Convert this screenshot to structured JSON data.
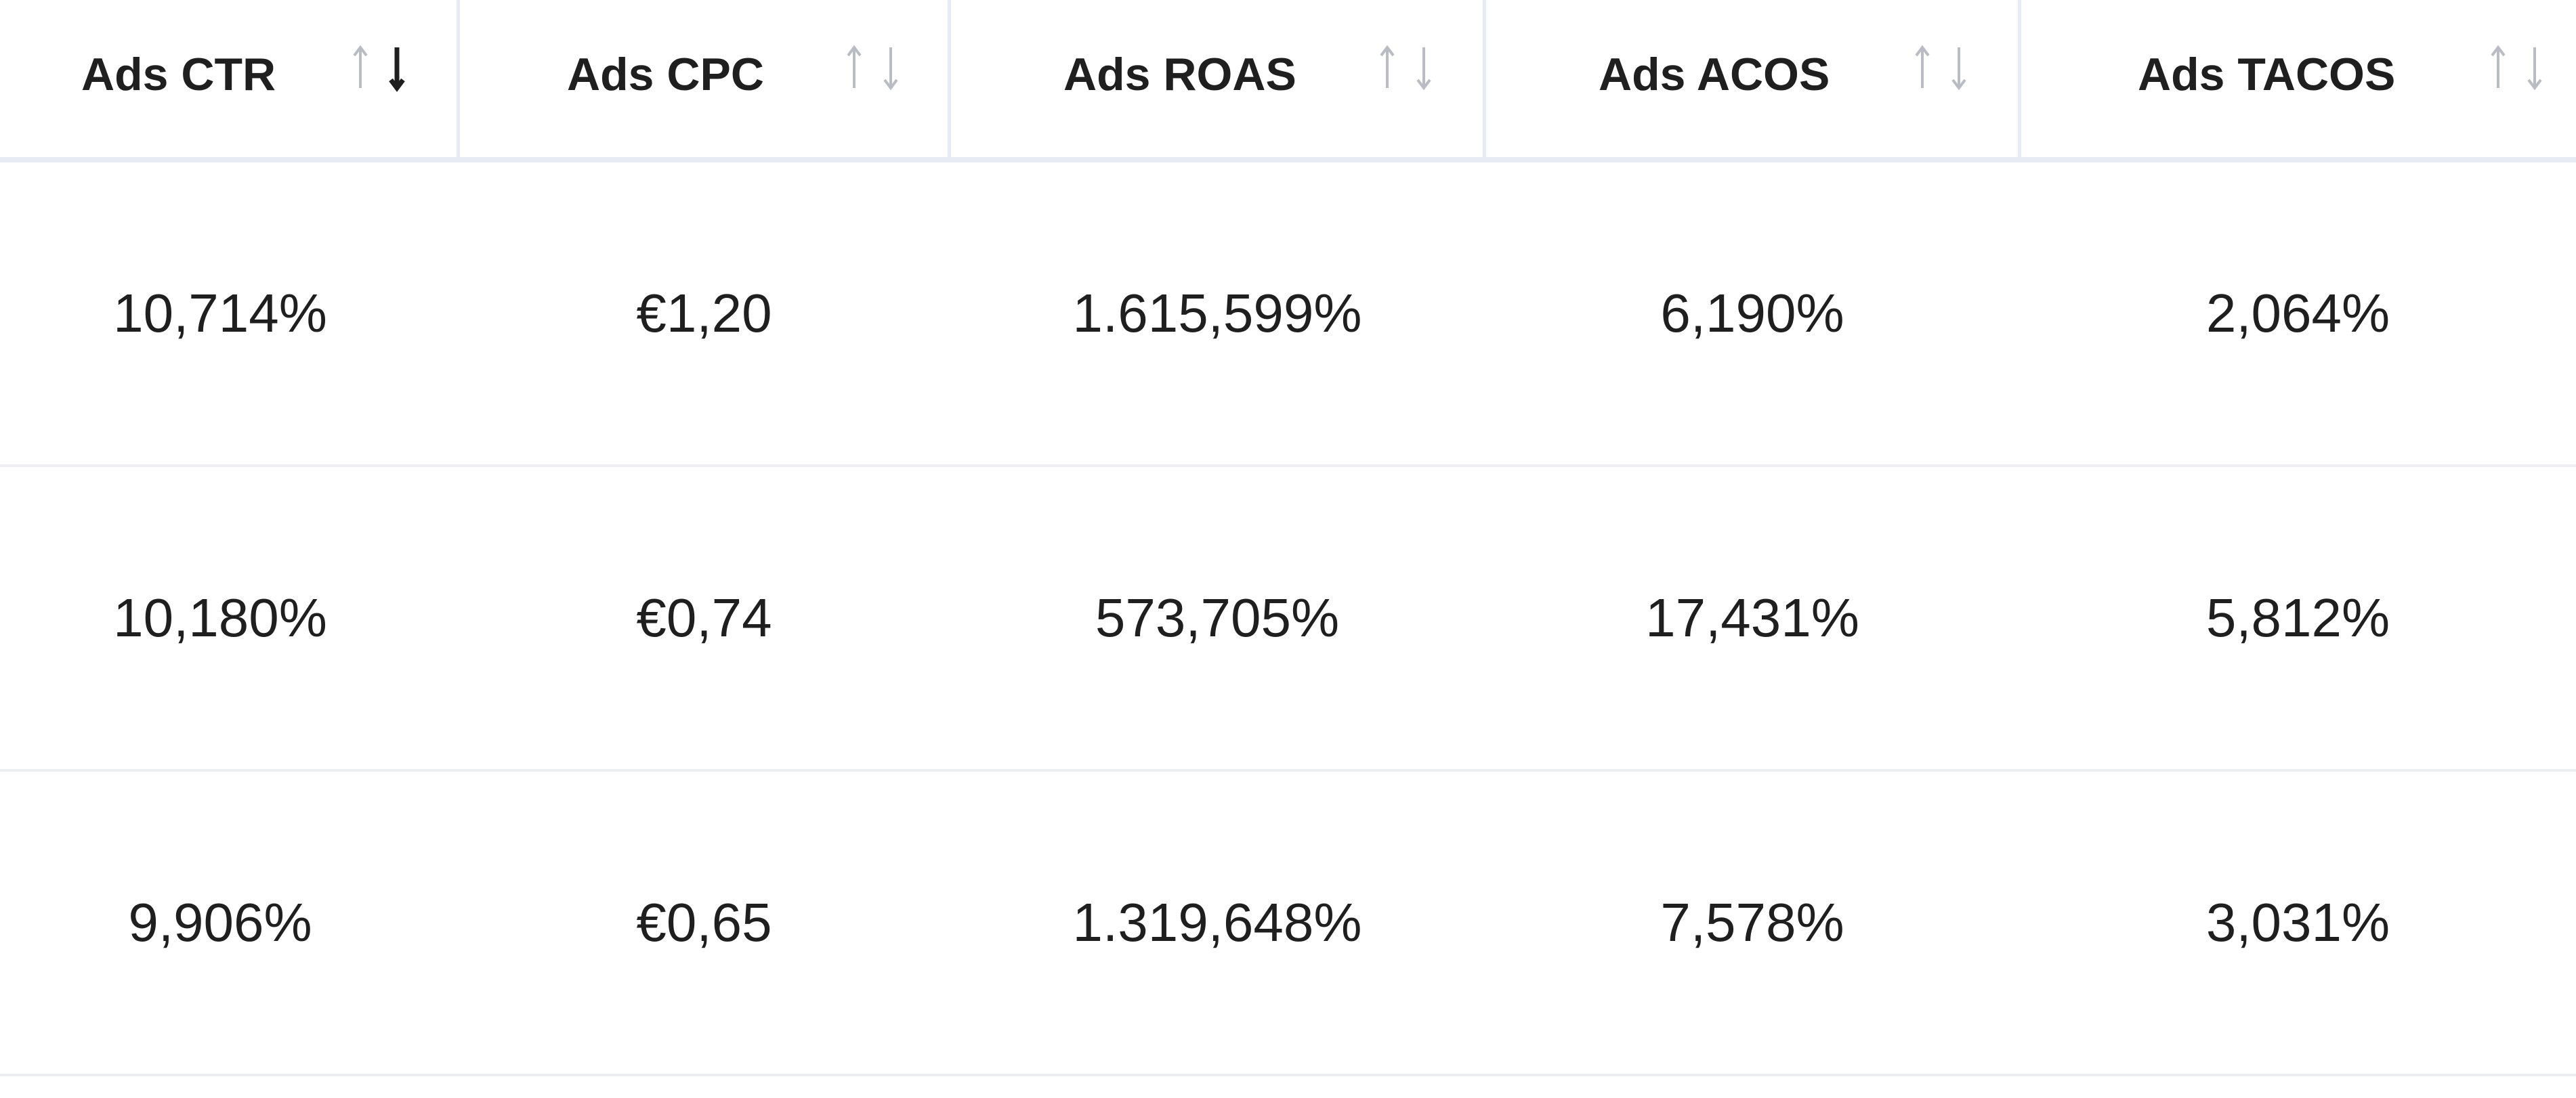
{
  "columns": [
    {
      "label": "Ads CTR",
      "sort": "desc"
    },
    {
      "label": "Ads CPC",
      "sort": "none"
    },
    {
      "label": "Ads ROAS",
      "sort": "none"
    },
    {
      "label": "Ads ACOS",
      "sort": "none"
    },
    {
      "label": "Ads TACOS",
      "sort": "none"
    }
  ],
  "rows": [
    [
      "10,714%",
      "€1,20",
      "1.615,599%",
      "6,190%",
      "2,064%"
    ],
    [
      "10,180%",
      "€0,74",
      "573,705%",
      "17,431%",
      "5,812%"
    ],
    [
      "9,906%",
      "€0,65",
      "1.319,648%",
      "7,578%",
      "3,031%"
    ]
  ],
  "colors": {
    "active_arrow": "#1f1f1f",
    "inactive_arrow": "#b9bcc2",
    "divider": "#e7ebf3"
  }
}
